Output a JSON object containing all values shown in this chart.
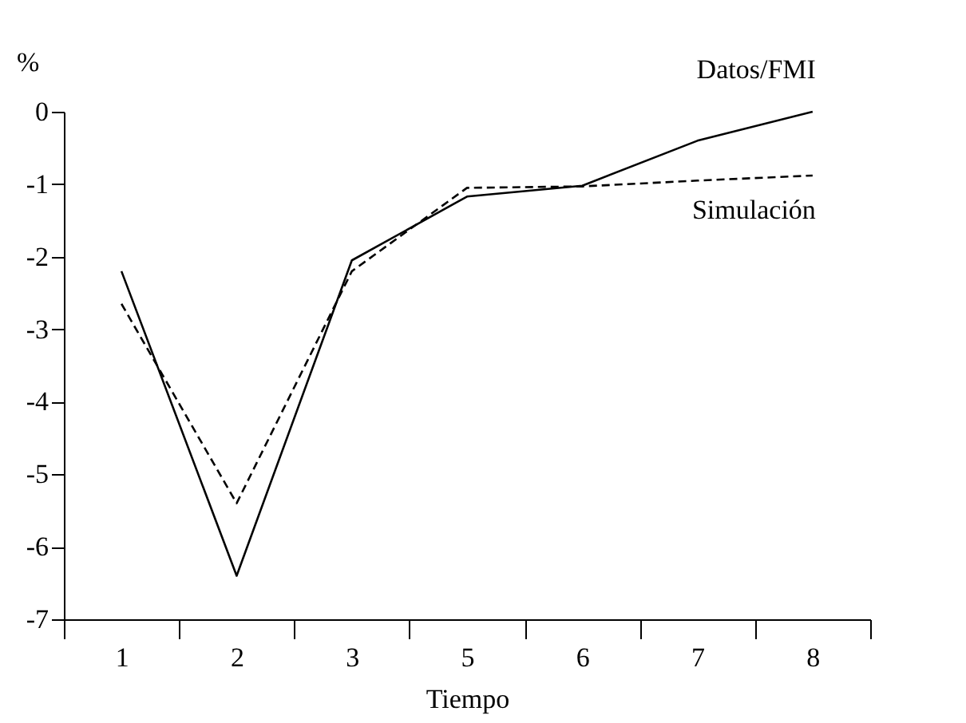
{
  "chart_data": {
    "type": "line",
    "xlabel": "Tiempo",
    "ylabel": "%",
    "categories": [
      "1",
      "2",
      "3",
      "5",
      "6",
      "7",
      "8"
    ],
    "series": [
      {
        "name": "Datos/FMI",
        "color": "#000000",
        "line_style": "solid",
        "values": [
          -2.2,
          -6.4,
          -2.05,
          -1.17,
          -1.02,
          -0.4,
          0.0
        ]
      },
      {
        "name": "Simulación",
        "color": "#000000",
        "line_style": "dashed",
        "values": [
          -2.65,
          -5.4,
          -2.2,
          -1.05,
          -1.03,
          -0.95,
          -0.88
        ]
      }
    ],
    "ylim": [
      -7,
      0
    ],
    "yticks": [
      -7,
      -6,
      -5,
      -4,
      -3,
      -2,
      -1,
      0
    ],
    "grid": false,
    "marker": "none"
  }
}
